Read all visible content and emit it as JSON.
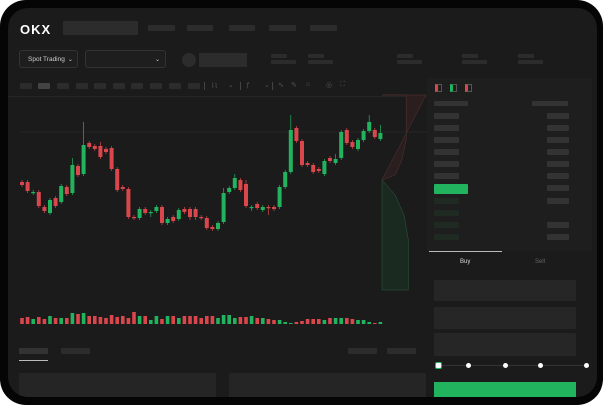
{
  "header": {
    "logo": "OKX"
  },
  "toolbar": {
    "market_select": "Spot Trading",
    "market_chevron": "chevron-down-icon",
    "pair_chevron": "chevron-down-icon"
  },
  "trade_panel": {
    "buy_tab": "Buy",
    "sell_tab": "Sell",
    "active_tab": "Buy",
    "slider_percent": 0
  },
  "colors": {
    "up": "#22b35e",
    "down": "#d9464c",
    "background": "#1b1b1b",
    "accent_button": "#22b35e"
  },
  "chart_data": {
    "type": "candlestick",
    "candles": [
      [
        118,
        120,
        113,
        115
      ],
      [
        118,
        120,
        107,
        109
      ],
      [
        107,
        110,
        105,
        108
      ],
      [
        108,
        110,
        92,
        94
      ],
      [
        93,
        95,
        87,
        89
      ],
      [
        87,
        102,
        85,
        100
      ],
      [
        102,
        104,
        92,
        94
      ],
      [
        98,
        116,
        96,
        114
      ],
      [
        113,
        115,
        104,
        106
      ],
      [
        107,
        142,
        105,
        135
      ],
      [
        134,
        136,
        123,
        125
      ],
      [
        126,
        178,
        124,
        155
      ],
      [
        157,
        159,
        151,
        153
      ],
      [
        154,
        156,
        149,
        151
      ],
      [
        154,
        158,
        141,
        143
      ],
      [
        151,
        153,
        146,
        148
      ],
      [
        152,
        154,
        129,
        131
      ],
      [
        131,
        133,
        108,
        110
      ],
      [
        113,
        115,
        109,
        111
      ],
      [
        111,
        113,
        81,
        83
      ],
      [
        83,
        85,
        80,
        82
      ],
      [
        82,
        93,
        80,
        91
      ],
      [
        91,
        93,
        85,
        87
      ],
      [
        87,
        90,
        83,
        88
      ],
      [
        89,
        95,
        87,
        93
      ],
      [
        93,
        95,
        75,
        77
      ],
      [
        77,
        83,
        75,
        81
      ],
      [
        83,
        85,
        77,
        79
      ],
      [
        81,
        92,
        79,
        90
      ],
      [
        91,
        93,
        86,
        88
      ],
      [
        91,
        93,
        80,
        83
      ],
      [
        91,
        93,
        80,
        83
      ],
      [
        83,
        85,
        80,
        82
      ],
      [
        82,
        84,
        70,
        72
      ],
      [
        73,
        75,
        69,
        71
      ],
      [
        71,
        79,
        69,
        77
      ],
      [
        78,
        112,
        76,
        107
      ],
      [
        108,
        114,
        106,
        112
      ],
      [
        112,
        126,
        110,
        122
      ],
      [
        120,
        122,
        108,
        110
      ],
      [
        116,
        120,
        92,
        94
      ],
      [
        92,
        95,
        89,
        93
      ],
      [
        96,
        98,
        90,
        92
      ],
      [
        90,
        95,
        88,
        93
      ],
      [
        93,
        95,
        85,
        92
      ],
      [
        93,
        95,
        89,
        91
      ],
      [
        93,
        115,
        91,
        113
      ],
      [
        113,
        130,
        111,
        128
      ],
      [
        128,
        185,
        126,
        170
      ],
      [
        172,
        174,
        157,
        159
      ],
      [
        159,
        161,
        133,
        135
      ],
      [
        137,
        139,
        133,
        135
      ],
      [
        135,
        137,
        126,
        128
      ],
      [
        131,
        133,
        127,
        129
      ],
      [
        126,
        141,
        124,
        139
      ],
      [
        142,
        144,
        137,
        139
      ],
      [
        137,
        146,
        135,
        141
      ],
      [
        142,
        170,
        140,
        168
      ],
      [
        170,
        172,
        155,
        157
      ],
      [
        158,
        160,
        151,
        153
      ],
      [
        151,
        162,
        149,
        160
      ],
      [
        160,
        171,
        158,
        169
      ],
      [
        169,
        185,
        167,
        178
      ],
      [
        170,
        172,
        161,
        163
      ],
      [
        161,
        175,
        159,
        167
      ]
    ],
    "candle_format": [
      "open",
      "high",
      "low",
      "close"
    ],
    "volume": [
      6,
      7,
      5,
      7,
      5,
      8,
      6,
      6,
      6,
      11,
      10,
      11,
      8,
      8,
      7,
      6,
      9,
      7,
      8,
      6,
      12,
      8,
      8,
      4,
      8,
      5,
      8,
      8,
      6,
      8,
      8,
      8,
      6,
      8,
      8,
      6,
      9,
      9,
      6,
      7,
      7,
      8,
      6,
      6,
      5,
      4,
      4,
      2,
      1,
      2,
      3,
      5,
      5,
      5,
      4,
      6,
      6,
      6,
      6,
      5,
      4,
      4,
      2,
      1,
      2
    ],
    "depth": {
      "asks": [
        [
          0,
          95
        ],
        [
          0.55,
          95
        ],
        [
          0.55,
          140
        ],
        [
          0.45,
          160
        ],
        [
          0.3,
          175
        ],
        [
          0,
          180
        ]
      ],
      "bids": [
        [
          0,
          180
        ],
        [
          0.3,
          195
        ],
        [
          0.5,
          215
        ],
        [
          0.6,
          240
        ],
        [
          0.6,
          290
        ]
      ]
    }
  }
}
